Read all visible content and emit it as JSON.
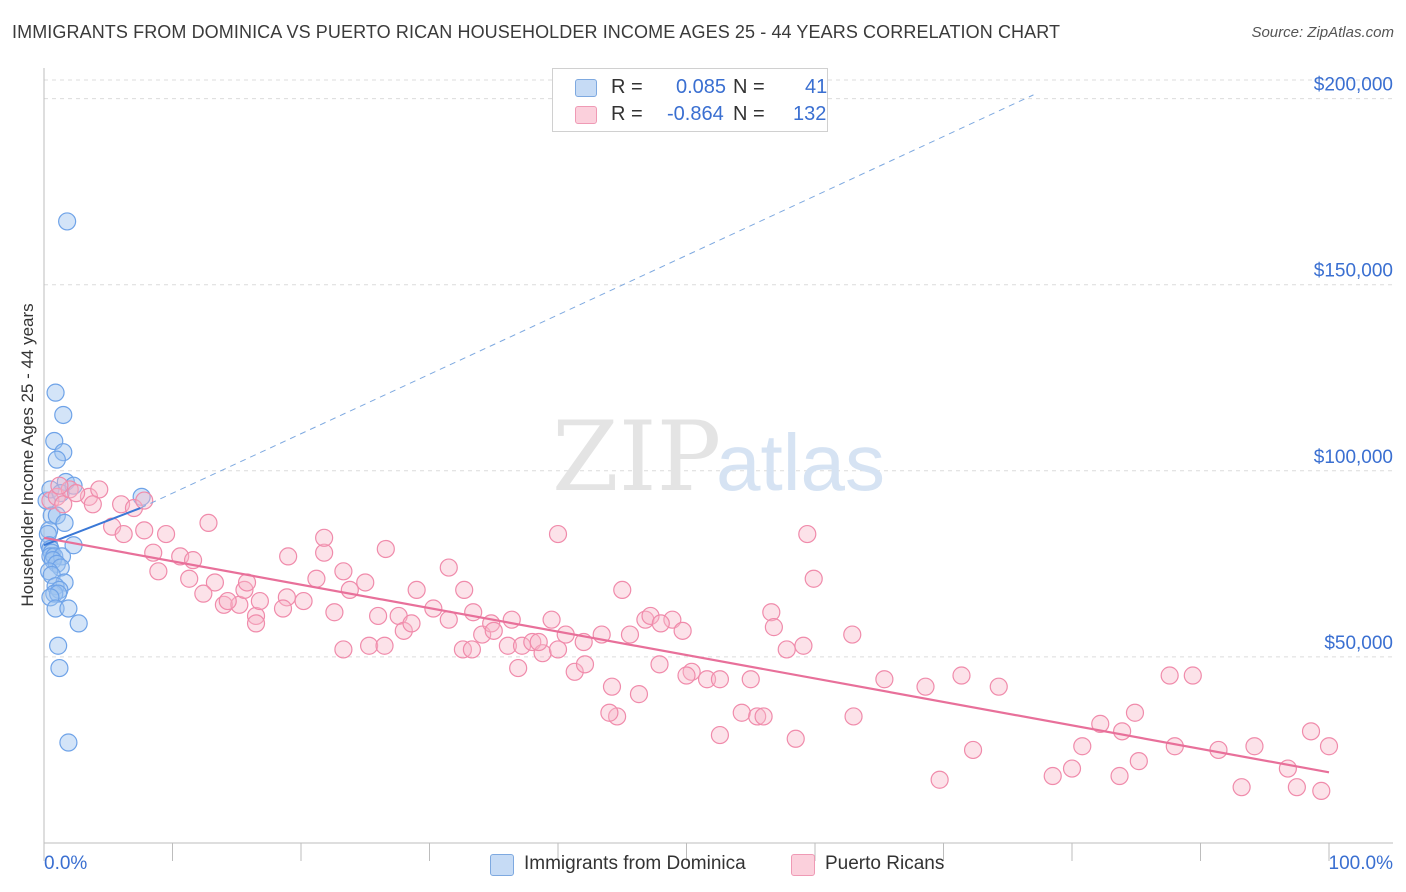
{
  "title": "IMMIGRANTS FROM DOMINICA VS PUERTO RICAN HOUSEHOLDER INCOME AGES 25 - 44 YEARS CORRELATION CHART",
  "source": "Source: ZipAtlas.com",
  "watermark": {
    "zip": "ZIP",
    "atlas": "atlas"
  },
  "legend": {
    "rows": [
      {
        "r_label": "R =",
        "r_value": "0.085",
        "n_label": "N =",
        "n_value": "41",
        "color": "#9ec3f0"
      },
      {
        "r_label": "R =",
        "r_value": "-0.864",
        "n_label": "N = ",
        "n_value": "132",
        "color": "#f7b6c8"
      }
    ]
  },
  "bottom_legend": [
    {
      "label": "Immigrants from Dominica",
      "color": "#9ec3f0"
    },
    {
      "label": "Puerto Ricans",
      "color": "#f7b6c8"
    }
  ],
  "chart_data": {
    "type": "scatter",
    "title": "IMMIGRANTS FROM DOMINICA VS PUERTO RICAN HOUSEHOLDER INCOME AGES 25 - 44 years CORRELATION CHART",
    "xlabel": "",
    "ylabel": "Householder Income Ages 25 - 44 years",
    "x_tick_labels": [
      "0.0%",
      "100.0%"
    ],
    "y_tick_labels": [
      "$50,000",
      "$100,000",
      "$150,000",
      "$200,000"
    ],
    "y_ticks": [
      50000,
      100000,
      150000,
      200000
    ],
    "xlim": [
      0,
      100
    ],
    "ylim": [
      0,
      205000
    ],
    "series": [
      {
        "name": "Immigrants from Dominica",
        "color": "#6fa3e8",
        "trend": {
          "x0": 0,
          "y0": 80000,
          "x1": 7.5,
          "y1": 90000,
          "extended_to_x": 77,
          "extended_y": 201000
        },
        "points": [
          [
            0.2,
            92000
          ],
          [
            0.5,
            95000
          ],
          [
            0.6,
            88000
          ],
          [
            0.4,
            84000
          ],
          [
            0.3,
            83000
          ],
          [
            0.4,
            80000
          ],
          [
            0.5,
            79000
          ],
          [
            0.6,
            78000
          ],
          [
            0.5,
            77000
          ],
          [
            0.8,
            77000
          ],
          [
            1.4,
            77000
          ],
          [
            0.7,
            76000
          ],
          [
            1.0,
            75000
          ],
          [
            1.3,
            74000
          ],
          [
            0.4,
            73000
          ],
          [
            0.6,
            72000
          ],
          [
            1.6,
            70000
          ],
          [
            0.9,
            69000
          ],
          [
            1.2,
            68000
          ],
          [
            0.8,
            67000
          ],
          [
            1.1,
            67000
          ],
          [
            0.5,
            66000
          ],
          [
            0.9,
            63000
          ],
          [
            1.9,
            63000
          ],
          [
            2.7,
            59000
          ],
          [
            1.1,
            53000
          ],
          [
            1.2,
            47000
          ],
          [
            1.9,
            27000
          ],
          [
            1.8,
            167000
          ],
          [
            0.9,
            121000
          ],
          [
            1.5,
            115000
          ],
          [
            0.8,
            108000
          ],
          [
            1.5,
            105000
          ],
          [
            1.0,
            103000
          ],
          [
            1.7,
            97000
          ],
          [
            1.3,
            94000
          ],
          [
            2.3,
            96000
          ],
          [
            1.0,
            88000
          ],
          [
            1.6,
            86000
          ],
          [
            2.3,
            80000
          ],
          [
            7.6,
            93000
          ]
        ]
      },
      {
        "name": "Puerto Ricans",
        "color": "#f08bab",
        "trend": {
          "x0": 0,
          "y0": 82000,
          "x1": 100,
          "y1": 19000
        },
        "points": [
          [
            0.5,
            92000
          ],
          [
            1.0,
            93000
          ],
          [
            1.5,
            91000
          ],
          [
            2.0,
            95000
          ],
          [
            3.5,
            93000
          ],
          [
            4.3,
            95000
          ],
          [
            3.8,
            91000
          ],
          [
            6.0,
            91000
          ],
          [
            7.0,
            90000
          ],
          [
            7.8,
            92000
          ],
          [
            1.2,
            96000
          ],
          [
            2.5,
            94000
          ],
          [
            5.3,
            85000
          ],
          [
            6.2,
            83000
          ],
          [
            7.8,
            84000
          ],
          [
            9.5,
            83000
          ],
          [
            12.8,
            86000
          ],
          [
            8.5,
            78000
          ],
          [
            8.9,
            73000
          ],
          [
            10.6,
            77000
          ],
          [
            11.6,
            76000
          ],
          [
            11.3,
            71000
          ],
          [
            13.3,
            70000
          ],
          [
            12.4,
            67000
          ],
          [
            14.0,
            64000
          ],
          [
            15.2,
            64000
          ],
          [
            15.6,
            68000
          ],
          [
            16.5,
            61000
          ],
          [
            16.8,
            65000
          ],
          [
            18.9,
            66000
          ],
          [
            18.6,
            63000
          ],
          [
            16.5,
            59000
          ],
          [
            19.0,
            77000
          ],
          [
            20.2,
            65000
          ],
          [
            21.2,
            71000
          ],
          [
            22.6,
            62000
          ],
          [
            23.3,
            73000
          ],
          [
            23.8,
            68000
          ],
          [
            21.8,
            78000
          ],
          [
            25.0,
            70000
          ],
          [
            26.0,
            61000
          ],
          [
            26.6,
            79000
          ],
          [
            27.6,
            61000
          ],
          [
            28.0,
            57000
          ],
          [
            29.0,
            68000
          ],
          [
            30.3,
            63000
          ],
          [
            31.5,
            60000
          ],
          [
            31.5,
            74000
          ],
          [
            32.7,
            68000
          ],
          [
            32.6,
            52000
          ],
          [
            33.3,
            52000
          ],
          [
            34.1,
            56000
          ],
          [
            34.8,
            59000
          ],
          [
            35.0,
            57000
          ],
          [
            36.1,
            53000
          ],
          [
            36.4,
            60000
          ],
          [
            36.9,
            47000
          ],
          [
            37.2,
            53000
          ],
          [
            38.0,
            54000
          ],
          [
            38.8,
            51000
          ],
          [
            39.5,
            60000
          ],
          [
            40.0,
            52000
          ],
          [
            40.6,
            56000
          ],
          [
            41.3,
            46000
          ],
          [
            42.1,
            48000
          ],
          [
            42.0,
            54000
          ],
          [
            43.4,
            56000
          ],
          [
            44.2,
            42000
          ],
          [
            44.6,
            34000
          ],
          [
            45.0,
            68000
          ],
          [
            45.6,
            56000
          ],
          [
            46.8,
            60000
          ],
          [
            47.2,
            61000
          ],
          [
            47.9,
            48000
          ],
          [
            48.9,
            60000
          ],
          [
            49.7,
            57000
          ],
          [
            50.4,
            46000
          ],
          [
            51.6,
            44000
          ],
          [
            52.6,
            44000
          ],
          [
            54.3,
            35000
          ],
          [
            55.5,
            34000
          ],
          [
            56.6,
            62000
          ],
          [
            57.8,
            52000
          ],
          [
            59.1,
            53000
          ],
          [
            21.8,
            82000
          ],
          [
            25.3,
            53000
          ],
          [
            28.6,
            59000
          ],
          [
            33.4,
            62000
          ],
          [
            40.0,
            83000
          ],
          [
            48.0,
            59000
          ],
          [
            56.8,
            58000
          ],
          [
            59.4,
            83000
          ],
          [
            59.9,
            71000
          ],
          [
            62.9,
            56000
          ],
          [
            55.0,
            44000
          ],
          [
            56.0,
            34000
          ],
          [
            50.0,
            45000
          ],
          [
            46.3,
            40000
          ],
          [
            14.3,
            65000
          ],
          [
            15.8,
            70000
          ],
          [
            26.5,
            53000
          ],
          [
            38.5,
            54000
          ],
          [
            44.0,
            35000
          ],
          [
            23.3,
            52000
          ],
          [
            52.6,
            29000
          ],
          [
            58.5,
            28000
          ],
          [
            65.4,
            44000
          ],
          [
            69.7,
            17000
          ],
          [
            71.4,
            45000
          ],
          [
            82.2,
            32000
          ],
          [
            80.0,
            20000
          ],
          [
            83.7,
            18000
          ],
          [
            84.9,
            35000
          ],
          [
            87.6,
            45000
          ],
          [
            89.4,
            45000
          ],
          [
            93.2,
            15000
          ],
          [
            94.2,
            26000
          ],
          [
            96.8,
            20000
          ],
          [
            97.5,
            15000
          ],
          [
            98.6,
            30000
          ],
          [
            99.4,
            14000
          ],
          [
            100.0,
            26000
          ],
          [
            63.0,
            34000
          ],
          [
            68.6,
            42000
          ],
          [
            72.3,
            25000
          ],
          [
            74.3,
            42000
          ],
          [
            78.5,
            18000
          ],
          [
            80.8,
            26000
          ],
          [
            83.9,
            30000
          ],
          [
            85.2,
            22000
          ],
          [
            91.4,
            25000
          ],
          [
            88.0,
            26000
          ]
        ]
      }
    ]
  }
}
